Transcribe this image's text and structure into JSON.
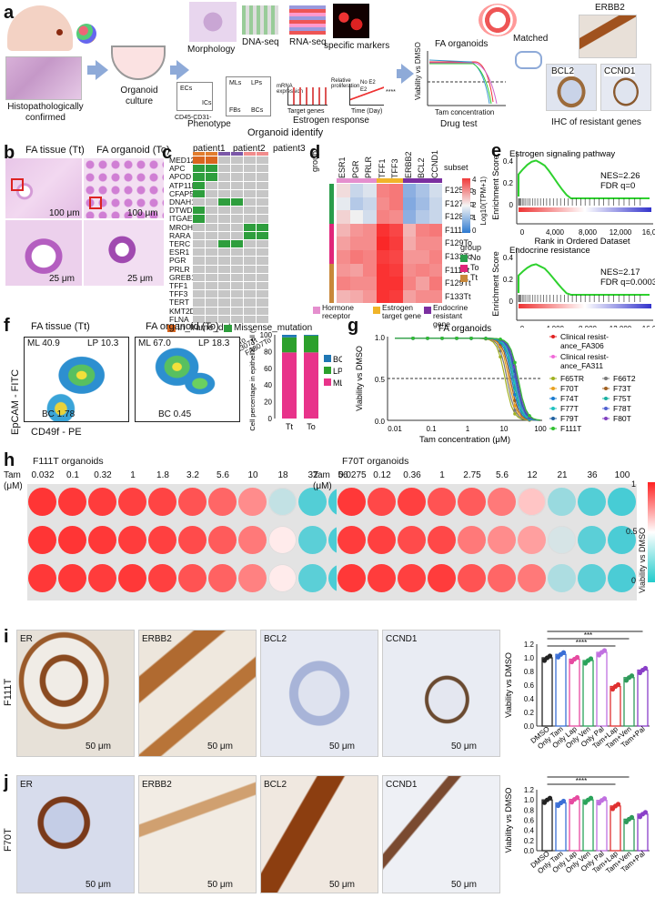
{
  "panels": {
    "a": "a",
    "b": "b",
    "c": "c",
    "d": "d",
    "e": "e",
    "f": "f",
    "g": "g",
    "h": "h",
    "i": "i",
    "j": "j"
  },
  "a": {
    "histo": "Histopathologically confirmed",
    "culture": "Organoid culture",
    "morphology": "Morphology",
    "dnaseq": "DNA-seq",
    "rnaseq": "RNA-seq",
    "markers": "specific markers",
    "phenotype": "Phenotype",
    "ecs": "ECs",
    "ics": "ICs",
    "cd": "CD45-CD31-",
    "mls": "MLs",
    "lps": "LPs",
    "fbs": "FBs",
    "bcs": "BCs",
    "mrna": "mRNA expression",
    "target": "Target genes",
    "relprolif": "Relative proliferation",
    "noe2": "No E2",
    "e2": "E2",
    "timeday": "Time (Day)",
    "estrogen": "Estrogen response",
    "identify": "Organoid identify",
    "faorg": "FA organoids",
    "viab": "Viability vs DMSO",
    "tamconc": "Tam concentration",
    "drug": "Drug test",
    "matched": "Matched",
    "erbb2": "ERBB2",
    "bcl2": "BCL2",
    "ccnd1": "CCND1",
    "ihc": "IHC of resistant genes",
    "stars": "****"
  },
  "b": {
    "tissue": "FA tissue (Tt)",
    "organoid": "FA organoid (To)",
    "s100a": "100 μm",
    "s100b": "100 μm",
    "s25a": "25 μm",
    "s25b": "25 μm"
  },
  "c": {
    "patients": [
      "patient1",
      "patient2",
      "patient3"
    ],
    "genes": [
      "MED12",
      "APC",
      "APOD",
      "ATP11B",
      "CFAP58",
      "DNAH11",
      "DTWD1",
      "ITGAE",
      "MROH8",
      "RARA",
      "TERC",
      "ESR1",
      "PGR",
      "PRLR",
      "GREB1",
      "TFF1",
      "TFF3",
      "TERT",
      "KMT2D",
      "FLNA"
    ],
    "samples": [
      "FA308Tt",
      "FA308To",
      "FA310Tt",
      "FA310To",
      "FA307Tt",
      "FA307To"
    ],
    "legend": [
      "In_frame_del",
      "Missense_mutation"
    ],
    "colors": {
      "patient1": "#e27d2d",
      "patient2": "#7b57a8",
      "patient3": "#f18c8c",
      "inframe": "#d9661f",
      "missense": "#2e9e3d",
      "none": "#c6c6c6"
    }
  },
  "d": {
    "genes": [
      "ESR1",
      "PGR",
      "PRLR",
      "TFF1",
      "TFF3",
      "ERBB2",
      "BCL2",
      "CCND1"
    ],
    "grouplabel": "group",
    "rows": [
      "F125No",
      "F127No",
      "F128No",
      "F111To",
      "F129To",
      "F133To",
      "F111Tt",
      "F129Tt",
      "F133Tt"
    ],
    "subset": "subset",
    "scale": [
      "4",
      "3",
      "2",
      "1",
      "0"
    ],
    "scaleTitle": "Log10(TPM+1)",
    "groups": [
      "No",
      "To",
      "Tt"
    ],
    "subsets": [
      "Hormone receptor",
      "Estrogen target gene",
      "Endocrine resistant gene"
    ],
    "subsetColors": [
      "#e58fce",
      "#f0b429",
      "#7b2fa0"
    ],
    "groupColors": [
      "#2a9d4b",
      "#e0267a",
      "#c8883a"
    ]
  },
  "e": {
    "top": {
      "title": "Estrogen signaling pathway",
      "nes": "NES=2.26",
      "fdr": "FDR q=0"
    },
    "bottom": {
      "title": "Endocrine resistance",
      "nes": "NES=2.17",
      "fdr": "FDR q=0.0003"
    },
    "ylabel": "Enrichment Score",
    "xlabel": "Rank in Ordered Dataset",
    "yticks": [
      "0.4",
      "0.2",
      "0"
    ],
    "xticks": [
      "0",
      "4,000",
      "8,000",
      "12,000",
      "16,000"
    ]
  },
  "f": {
    "tissue": "FA tissue (Tt)",
    "organoid": "FA organoid (To)",
    "ylabel": "EpCAM - FITC",
    "xlabel": "CD49f - PE",
    "t_ml": "ML 40.9",
    "t_lp": "LP 10.3",
    "t_bc": "BC 1.78",
    "o_ml": "ML 67.0",
    "o_lp": "LP 18.3",
    "o_bc": "BC 0.45",
    "barYlabel": "Cell percentage in epithelial cell (%)",
    "ticks": [
      "100",
      "80",
      "60",
      "40",
      "20",
      "0"
    ],
    "cats": [
      "Tt",
      "To"
    ],
    "legend": [
      "BC",
      "LP",
      "ML"
    ],
    "colors": [
      "#1f77b4",
      "#2ca02c",
      "#e8338a"
    ],
    "stack": {
      "Tt": {
        "ML": 79,
        "LP": 18,
        "BC": 3
      },
      "To": {
        "ML": 79,
        "LP": 20,
        "BC": 1
      }
    }
  },
  "g": {
    "title": "FA organoids",
    "ylabel": "Viability vs DMSO",
    "xlabel": "Tam concentration (μM)",
    "yticks": [
      "1.0",
      "0.5",
      "0.0"
    ],
    "xticks": [
      "0.01",
      "0.1",
      "1",
      "10",
      "100"
    ],
    "legend": [
      [
        "Clinical resist- ance_FA306",
        "#e02020"
      ],
      [
        "Clinical resist- ance_FA311",
        "#f06ad8"
      ],
      [
        "F65TR",
        "#a0b020"
      ],
      [
        "F66T2",
        "#7a7a7a"
      ],
      [
        "F70T",
        "#e8a020"
      ],
      [
        "F73T",
        "#a06020"
      ],
      [
        "F74T",
        "#1a7ad0"
      ],
      [
        "F75T",
        "#18b0a0"
      ],
      [
        "F77T",
        "#20c0c0"
      ],
      [
        "F78T",
        "#5060d0"
      ],
      [
        "F79T",
        "#2060a0"
      ],
      [
        "F80T",
        "#8040c0"
      ],
      [
        "F111T",
        "#30c030"
      ]
    ]
  },
  "h": {
    "left": {
      "title": "F111T organoids",
      "doses": [
        "0.032",
        "0.1",
        "0.32",
        "1",
        "1.8",
        "3.2",
        "5.6",
        "10",
        "18",
        "32",
        "56"
      ]
    },
    "right": {
      "title": "F70T organoids",
      "doses": [
        "0.0275",
        "0.12",
        "0.36",
        "1",
        "2.75",
        "5.6",
        "12",
        "21",
        "36",
        "100"
      ]
    },
    "tam": "Tam",
    "um": "(μM)",
    "scaleTitle": "Viability vs DMSO",
    "scale": [
      "1",
      "0.5",
      "0"
    ]
  },
  "i": {
    "label": "F111T",
    "stains": [
      "ER",
      "ERBB2",
      "BCL2",
      "CCND1"
    ],
    "scale": "50 μm",
    "ylabel": "Viability vs DMSO",
    "cats": [
      "DMSO",
      "Only Tam",
      "Only Lap",
      "Only Ven",
      "Only Pal",
      "Tam+Lap",
      "Tam+Ven",
      "Tam+Pal"
    ],
    "values": [
      1.0,
      1.05,
      0.98,
      0.96,
      1.08,
      0.58,
      0.71,
      0.82
    ],
    "sig": [
      "*",
      "***",
      "****"
    ],
    "yticks": [
      "1.2",
      "1.0",
      "0.8",
      "0.6",
      "0.4",
      "0.2",
      "0.0"
    ]
  },
  "j": {
    "label": "F70T",
    "stains": [
      "ER",
      "ERBB2",
      "BCL2",
      "CCND1"
    ],
    "scale": "50 μm",
    "ylabel": "Viability vs DMSO",
    "cats": [
      "DMSO",
      "Only Tam",
      "Only Lap",
      "Only Ven",
      "Only Pal",
      "Tam+Lap",
      "Tam+Ven",
      "Tam+Pal"
    ],
    "values": [
      1.0,
      0.94,
      1.01,
      1.0,
      0.99,
      0.88,
      0.62,
      0.72
    ],
    "sig": [
      "**",
      "****"
    ],
    "yticks": [
      "1.2",
      "1.0",
      "0.8",
      "0.6",
      "0.4",
      "0.2",
      "0.0"
    ]
  },
  "barColors": [
    "#222222",
    "#3b6fd6",
    "#e64aa0",
    "#2aa35a",
    "#c070e0",
    "#e03030",
    "#2f9a5a",
    "#8a3fc8"
  ]
}
